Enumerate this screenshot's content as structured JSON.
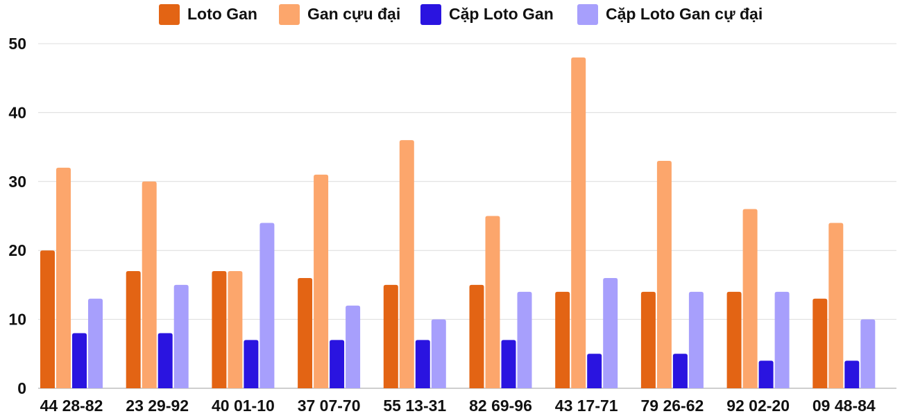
{
  "chart_data": {
    "type": "bar",
    "title": "",
    "xlabel": "",
    "ylabel": "",
    "ylim": [
      0,
      50
    ],
    "yticks": [
      0,
      10,
      20,
      30,
      40,
      50
    ],
    "grid": true,
    "legend_position": "top",
    "categories": [
      "44 28-82",
      "23 29-92",
      "40 01-10",
      "37 07-70",
      "55 13-31",
      "82 69-96",
      "43 17-71",
      "79 26-62",
      "92 02-20",
      "09 48-84"
    ],
    "series": [
      {
        "name": "Loto Gan",
        "color": "#e36414",
        "values": [
          20,
          17,
          17,
          16,
          15,
          15,
          14,
          14,
          14,
          13
        ]
      },
      {
        "name": "Gan cựu đại",
        "color": "#fca66c",
        "values": [
          32,
          30,
          17,
          31,
          36,
          25,
          48,
          33,
          26,
          24
        ]
      },
      {
        "name": "Cặp Loto Gan",
        "color": "#2a14e0",
        "values": [
          8,
          8,
          7,
          7,
          7,
          7,
          5,
          5,
          4,
          4
        ]
      },
      {
        "name": "Cặp Loto Gan cự đại",
        "color": "#a79ffc",
        "values": [
          13,
          15,
          24,
          12,
          10,
          14,
          16,
          14,
          14,
          10
        ]
      }
    ]
  }
}
